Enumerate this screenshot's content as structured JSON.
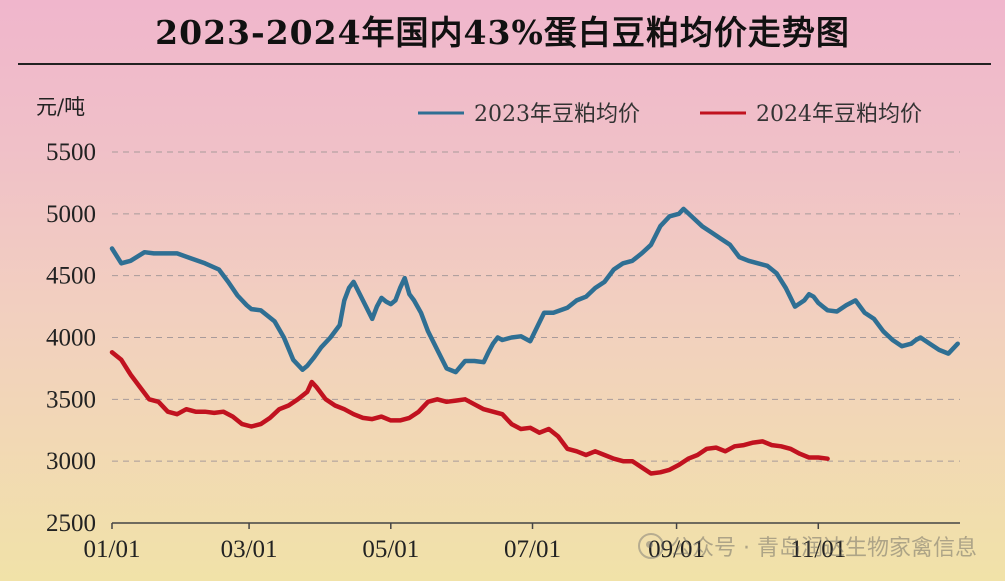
{
  "title": "2023-2024年国内43%蛋白豆粕均价走势图",
  "watermark": {
    "icon": "wechat-icon",
    "text": "公众号 · 青岛润达生物家禽信息"
  },
  "chart_data": {
    "type": "line",
    "title": "2023-2024年国内43%蛋白豆粕均价走势图",
    "ylabel": "元/吨",
    "xlabel": "",
    "ylim": [
      2500,
      5500
    ],
    "yticks": [
      2500,
      3000,
      3500,
      4000,
      4500,
      5000,
      5500
    ],
    "xlim": [
      0,
      365
    ],
    "xticks": [
      {
        "label": "01/01",
        "day": 0
      },
      {
        "label": "03/01",
        "day": 59
      },
      {
        "label": "05/01",
        "day": 120
      },
      {
        "label": "07/01",
        "day": 181
      },
      {
        "label": "09/01",
        "day": 243
      },
      {
        "label": "11/01",
        "day": 304
      }
    ],
    "grid": "horizontal-dashed",
    "legend_position": "top-right",
    "series": [
      {
        "name": "2023年豆粕均价",
        "color": "#2f6f93",
        "day": [
          0,
          4,
          8,
          14,
          18,
          22,
          28,
          34,
          40,
          46,
          50,
          54,
          58,
          60,
          64,
          70,
          74,
          78,
          82,
          84,
          87,
          90,
          94,
          98,
          100,
          102,
          104,
          108,
          112,
          114,
          116,
          118,
          120,
          122,
          124,
          126,
          128,
          130,
          133,
          136,
          140,
          144,
          148,
          152,
          156,
          160,
          162,
          164,
          166,
          168,
          172,
          176,
          180,
          186,
          190,
          196,
          200,
          204,
          208,
          212,
          216,
          220,
          224,
          228,
          232,
          236,
          240,
          244,
          246,
          250,
          254,
          258,
          262,
          266,
          270,
          274,
          278,
          282,
          286,
          290,
          294,
          298,
          300,
          302,
          304,
          306,
          308,
          312,
          316,
          320,
          324,
          328,
          332,
          336,
          340,
          344,
          346,
          348,
          352,
          356,
          360,
          364
        ],
        "values": [
          4720,
          4600,
          4620,
          4690,
          4680,
          4680,
          4680,
          4640,
          4600,
          4550,
          4450,
          4340,
          4260,
          4230,
          4220,
          4130,
          4000,
          3820,
          3740,
          3770,
          3840,
          3920,
          4000,
          4100,
          4300,
          4400,
          4450,
          4300,
          4150,
          4250,
          4320,
          4290,
          4270,
          4300,
          4400,
          4480,
          4350,
          4300,
          4200,
          4050,
          3900,
          3750,
          3720,
          3810,
          3810,
          3800,
          3880,
          3950,
          4000,
          3980,
          4000,
          4010,
          3970,
          4200,
          4200,
          4240,
          4300,
          4330,
          4400,
          4450,
          4550,
          4600,
          4620,
          4680,
          4750,
          4900,
          4980,
          5000,
          5040,
          4970,
          4900,
          4850,
          4800,
          4750,
          4650,
          4620,
          4600,
          4580,
          4520,
          4400,
          4250,
          4300,
          4350,
          4330,
          4280,
          4250,
          4220,
          4210,
          4260,
          4300,
          4200,
          4150,
          4050,
          3980,
          3930,
          3950,
          3980,
          4000,
          3950,
          3900,
          3870,
          3950
        ]
      },
      {
        "name": "2024年豆粕均价",
        "color": "#c1121f",
        "day": [
          0,
          4,
          8,
          12,
          16,
          20,
          24,
          28,
          32,
          36,
          40,
          44,
          48,
          52,
          56,
          60,
          64,
          68,
          72,
          76,
          80,
          84,
          86,
          88,
          92,
          96,
          100,
          104,
          108,
          112,
          116,
          120,
          124,
          128,
          132,
          136,
          140,
          144,
          148,
          152,
          156,
          160,
          164,
          168,
          172,
          176,
          180,
          184,
          188,
          192,
          196,
          200,
          204,
          208,
          212,
          216,
          220,
          224,
          228,
          232,
          236,
          240,
          244,
          248,
          252,
          256,
          260,
          264,
          268,
          272,
          276,
          280,
          284,
          288,
          292,
          296,
          300,
          304,
          308
        ],
        "values": [
          3880,
          3820,
          3700,
          3600,
          3500,
          3480,
          3400,
          3380,
          3420,
          3400,
          3400,
          3390,
          3400,
          3360,
          3300,
          3280,
          3300,
          3350,
          3420,
          3450,
          3500,
          3560,
          3640,
          3600,
          3500,
          3450,
          3420,
          3380,
          3350,
          3340,
          3360,
          3330,
          3330,
          3350,
          3400,
          3480,
          3500,
          3480,
          3490,
          3500,
          3460,
          3420,
          3400,
          3380,
          3300,
          3260,
          3270,
          3230,
          3260,
          3200,
          3100,
          3080,
          3050,
          3080,
          3050,
          3020,
          3000,
          3000,
          2950,
          2900,
          2910,
          2930,
          2970,
          3020,
          3050,
          3100,
          3110,
          3080,
          3120,
          3130,
          3150,
          3160,
          3130,
          3120,
          3100,
          3060,
          3030,
          3030,
          3020
        ]
      }
    ]
  }
}
